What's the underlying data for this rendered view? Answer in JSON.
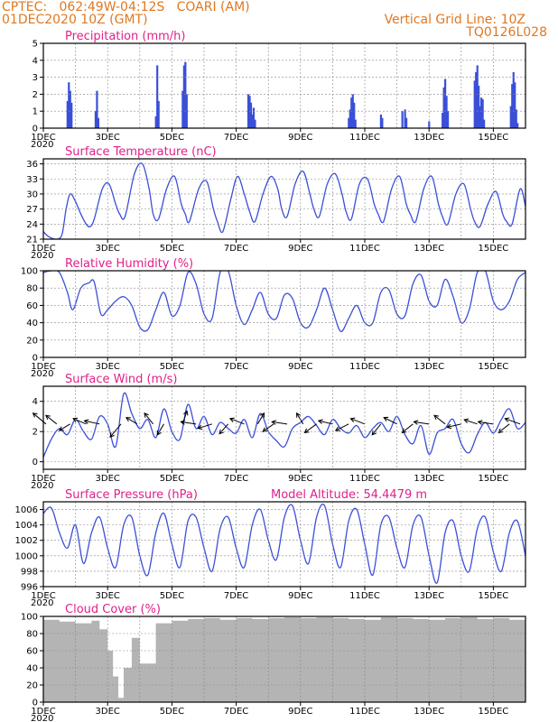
{
  "header": {
    "line1": "CPTEC:   062:49W-04:12S   COARI (AM)",
    "line2": "01DEC2020 10Z (GMT)",
    "right1": "Vertical Grid Line: 10Z",
    "right2": "TQ0126L028"
  },
  "xaxis": {
    "start_date": "01DEC2020 10Z",
    "end_date": "16DEC2020 10Z",
    "tick_labels": [
      "1DEC",
      "3DEC",
      "5DEC",
      "7DEC",
      "9DEC",
      "11DEC",
      "13DEC",
      "15DEC"
    ],
    "year_label": "2020"
  },
  "colors": {
    "series": "#3a4fd8",
    "title": "#e0208a",
    "header": "#e07820",
    "cloud": "#b4b4b4",
    "grid": "#888888"
  },
  "chart_data": [
    {
      "type": "bar",
      "title": "Precipitation (mm/h)",
      "ylim": [
        0,
        5
      ],
      "yticks": [
        0,
        1,
        2,
        3,
        4,
        5
      ],
      "x": [
        "02DEC 04Z",
        "02DEC 05Z",
        "02DEC 06Z",
        "02DEC 07Z",
        "03DEC 01Z",
        "03DEC 02Z",
        "03DEC 03Z",
        "04DEC 22Z",
        "04DEC 23Z",
        "05DEC 00Z",
        "05DEC 18Z",
        "05DEC 19Z",
        "05DEC 20Z",
        "05DEC 21Z",
        "07DEC 19Z",
        "07DEC 20Z",
        "07DEC 21Z",
        "07DEC 22Z",
        "07DEC 23Z",
        "08DEC 00Z",
        "10DEC 22Z",
        "10DEC 23Z",
        "11DEC 00Z",
        "11DEC 01Z",
        "11DEC 02Z",
        "11DEC 03Z",
        "11DEC 22Z",
        "11DEC 23Z",
        "12DEC 14Z",
        "12DEC 16Z",
        "12DEC 17Z",
        "13DEC 10Z",
        "13DEC 20Z",
        "13DEC 21Z",
        "13DEC 22Z",
        "13DEC 23Z",
        "14DEC 00Z",
        "14DEC 20Z",
        "14DEC 21Z",
        "14DEC 22Z",
        "14DEC 23Z",
        "15DEC 00Z",
        "15DEC 01Z",
        "15DEC 02Z",
        "15DEC 03Z",
        "15DEC 23Z",
        "16DEC 00Z",
        "16DEC 01Z",
        "16DEC 02Z",
        "16DEC 03Z",
        "16DEC 04Z"
      ],
      "values": [
        1.6,
        2.7,
        2.2,
        1.5,
        1.0,
        2.2,
        0.6,
        0.7,
        3.7,
        1.6,
        2.2,
        3.7,
        3.9,
        2.0,
        2.0,
        1.9,
        1.5,
        0.8,
        1.2,
        0.5,
        0.6,
        1.1,
        1.8,
        2.0,
        1.5,
        0.5,
        0.8,
        0.6,
        1.0,
        1.1,
        0.6,
        0.4,
        0.9,
        2.4,
        2.9,
        1.9,
        1.0,
        2.8,
        3.3,
        3.7,
        2.5,
        1.3,
        1.8,
        1.7,
        0.5,
        1.3,
        2.6,
        3.3,
        2.7,
        1.1,
        0.3
      ]
    },
    {
      "type": "line",
      "title": "Surface Temperature (nC)",
      "ylim": [
        21,
        37
      ],
      "yticks": [
        21,
        24,
        27,
        30,
        33,
        36
      ],
      "x": [
        "01DEC 10Z",
        "01DEC 14Z",
        "01DEC 20Z",
        "02DEC 00Z",
        "02DEC 03Z",
        "02DEC 06Z",
        "02DEC 10Z",
        "02DEC 14Z",
        "02DEC 18Z",
        "02DEC 21Z",
        "03DEC 00Z",
        "03DEC 06Z",
        "03DEC 11Z",
        "03DEC 16Z",
        "03DEC 19Z",
        "03DEC 23Z",
        "04DEC 06Z",
        "04DEC 12Z",
        "04DEC 17Z",
        "04DEC 20Z",
        "05DEC 00Z",
        "05DEC 06Z",
        "05DEC 12Z",
        "05DEC 17Z",
        "05DEC 20Z",
        "05DEC 23Z",
        "06DEC 06Z",
        "06DEC 12Z",
        "06DEC 17Z",
        "06DEC 20Z",
        "07DEC 00Z",
        "07DEC 06Z",
        "07DEC 11Z",
        "07DEC 16Z",
        "07DEC 20Z",
        "08DEC 00Z",
        "08DEC 06Z",
        "08DEC 12Z",
        "08DEC 17Z",
        "08DEC 20Z",
        "09DEC 00Z",
        "09DEC 06Z",
        "09DEC 12Z",
        "09DEC 17Z",
        "09DEC 20Z",
        "10DEC 00Z",
        "10DEC 06Z",
        "10DEC 12Z",
        "10DEC 17Z",
        "10DEC 20Z",
        "11DEC 00Z",
        "11DEC 06Z",
        "11DEC 12Z",
        "11DEC 17Z",
        "11DEC 20Z",
        "12DEC 00Z",
        "12DEC 06Z",
        "12DEC 12Z",
        "12DEC 17Z",
        "12DEC 20Z",
        "13DEC 00Z",
        "13DEC 06Z",
        "13DEC 12Z",
        "13DEC 17Z",
        "13DEC 20Z",
        "14DEC 00Z",
        "14DEC 06Z",
        "14DEC 12Z",
        "14DEC 17Z",
        "14DEC 20Z",
        "15DEC 00Z",
        "15DEC 06Z",
        "15DEC 12Z",
        "15DEC 17Z",
        "15DEC 20Z",
        "16DEC 00Z",
        "16DEC 06Z",
        "16DEC 10Z"
      ],
      "values": [
        22.5,
        21.5,
        21.0,
        22.0,
        27.0,
        30.0,
        28.5,
        26.0,
        24.0,
        23.5,
        25.0,
        31.0,
        32.0,
        28.0,
        26.0,
        25.5,
        34.0,
        36.0,
        31.0,
        26.0,
        25.0,
        31.0,
        33.5,
        28.0,
        26.0,
        24.5,
        31.0,
        32.5,
        27.0,
        24.5,
        22.5,
        29.0,
        33.5,
        30.0,
        26.5,
        24.5,
        30.0,
        33.5,
        31.0,
        27.0,
        25.5,
        32.0,
        34.5,
        30.0,
        27.0,
        25.5,
        32.0,
        34.0,
        30.0,
        26.5,
        25.0,
        32.0,
        33.0,
        28.0,
        26.0,
        24.5,
        31.0,
        33.5,
        28.0,
        26.0,
        24.5,
        31.0,
        33.5,
        28.0,
        25.5,
        24.0,
        30.0,
        32.0,
        27.0,
        24.5,
        23.5,
        28.0,
        30.5,
        26.0,
        24.5,
        24.0,
        31.0,
        27.5
      ]
    },
    {
      "type": "line",
      "title": "Relative Humidity (%)",
      "ylim": [
        0,
        100
      ],
      "yticks": [
        0,
        20,
        40,
        60,
        80,
        100
      ],
      "x": [
        "01DEC 10Z",
        "01DEC 16Z",
        "01DEC 22Z",
        "02DEC 04Z",
        "02DEC 08Z",
        "02DEC 14Z",
        "02DEC 20Z",
        "03DEC 00Z",
        "03DEC 05Z",
        "03DEC 10Z",
        "03DEC 16Z",
        "03DEC 22Z",
        "04DEC 04Z",
        "04DEC 10Z",
        "04DEC 16Z",
        "04DEC 22Z",
        "05DEC 04Z",
        "05DEC 10Z",
        "05DEC 16Z",
        "05DEC 22Z",
        "06DEC 04Z",
        "06DEC 10Z",
        "06DEC 16Z",
        "06DEC 22Z",
        "07DEC 04Z",
        "07DEC 10Z",
        "07DEC 16Z",
        "07DEC 22Z",
        "08DEC 04Z",
        "08DEC 10Z",
        "08DEC 16Z",
        "08DEC 22Z",
        "09DEC 04Z",
        "09DEC 10Z",
        "09DEC 16Z",
        "09DEC 22Z",
        "10DEC 04Z",
        "10DEC 10Z",
        "10DEC 16Z",
        "10DEC 22Z",
        "11DEC 04Z",
        "11DEC 10Z",
        "11DEC 16Z",
        "11DEC 22Z",
        "12DEC 04Z",
        "12DEC 10Z",
        "12DEC 16Z",
        "12DEC 22Z",
        "13DEC 04Z",
        "13DEC 10Z",
        "13DEC 16Z",
        "13DEC 22Z",
        "14DEC 04Z",
        "14DEC 10Z",
        "14DEC 16Z",
        "14DEC 22Z",
        "15DEC 04Z",
        "15DEC 10Z",
        "15DEC 16Z",
        "15DEC 22Z",
        "16DEC 04Z",
        "16DEC 10Z"
      ],
      "values": [
        98,
        100,
        98,
        75,
        55,
        80,
        86,
        87,
        50,
        55,
        65,
        70,
        60,
        35,
        32,
        55,
        75,
        48,
        60,
        98,
        85,
        50,
        45,
        98,
        100,
        60,
        38,
        55,
        75,
        50,
        45,
        72,
        68,
        40,
        35,
        55,
        80,
        55,
        30,
        45,
        60,
        40,
        40,
        75,
        78,
        50,
        48,
        85,
        95,
        65,
        60,
        90,
        70,
        40,
        55,
        98,
        100,
        65,
        55,
        65,
        90,
        98
      ]
    },
    {
      "type": "line",
      "title": "Surface Wind (m/s)",
      "ylim": [
        -0.5,
        5
      ],
      "yticks": [
        0,
        2,
        4
      ],
      "x": [
        "01DEC 10Z",
        "01DEC 16Z",
        "01DEC 22Z",
        "02DEC 04Z",
        "02DEC 10Z",
        "02DEC 16Z",
        "02DEC 22Z",
        "03DEC 04Z",
        "03DEC 10Z",
        "03DEC 16Z",
        "03DEC 22Z",
        "04DEC 04Z",
        "04DEC 10Z",
        "04DEC 16Z",
        "04DEC 22Z",
        "05DEC 04Z",
        "05DEC 10Z",
        "05DEC 16Z",
        "05DEC 22Z",
        "06DEC 04Z",
        "06DEC 10Z",
        "06DEC 16Z",
        "06DEC 22Z",
        "07DEC 04Z",
        "07DEC 10Z",
        "07DEC 16Z",
        "07DEC 22Z",
        "08DEC 04Z",
        "08DEC 10Z",
        "08DEC 16Z",
        "08DEC 22Z",
        "09DEC 04Z",
        "09DEC 10Z",
        "09DEC 16Z",
        "09DEC 22Z",
        "10DEC 04Z",
        "10DEC 10Z",
        "10DEC 16Z",
        "10DEC 22Z",
        "11DEC 04Z",
        "11DEC 10Z",
        "11DEC 16Z",
        "11DEC 22Z",
        "12DEC 04Z",
        "12DEC 10Z",
        "12DEC 16Z",
        "12DEC 22Z",
        "13DEC 04Z",
        "13DEC 10Z",
        "13DEC 16Z",
        "13DEC 22Z",
        "14DEC 04Z",
        "14DEC 10Z",
        "14DEC 16Z",
        "14DEC 22Z",
        "15DEC 04Z",
        "15DEC 10Z",
        "15DEC 16Z",
        "15DEC 22Z",
        "16DEC 04Z",
        "16DEC 10Z"
      ],
      "values": [
        0.3,
        1.5,
        2.2,
        1.8,
        2.8,
        2.0,
        1.5,
        3.0,
        2.5,
        1.0,
        4.5,
        3.2,
        2.2,
        2.8,
        1.6,
        3.5,
        2.0,
        1.5,
        3.8,
        2.2,
        3.0,
        1.8,
        2.6,
        2.2,
        1.9,
        2.8,
        1.6,
        3.2,
        2.0,
        1.4,
        1.0,
        2.2,
        2.6,
        3.0,
        2.4,
        1.8,
        2.8,
        2.2,
        1.9,
        2.4,
        1.6,
        2.2,
        2.6,
        2.0,
        3.0,
        1.8,
        1.2,
        2.4,
        0.5,
        1.9,
        2.2,
        2.8,
        1.2,
        0.6,
        1.8,
        2.6,
        1.9,
        2.8,
        3.5,
        2.2,
        2.6
      ],
      "arrows": [
        {
          "x": "01DEC 12Z",
          "u": -1.2,
          "v": 1.0
        },
        {
          "x": "01DEC 20Z",
          "u": -1.0,
          "v": 0.8
        },
        {
          "x": "02DEC 06Z",
          "u": -1.0,
          "v": -0.6
        },
        {
          "x": "02DEC 18Z",
          "u": -1.2,
          "v": 0.5
        },
        {
          "x": "03DEC 04Z",
          "u": -1.4,
          "v": 0.3
        },
        {
          "x": "03DEC 20Z",
          "u": -1.0,
          "v": -1.2
        },
        {
          "x": "04DEC 08Z",
          "u": -1.0,
          "v": 0.6
        },
        {
          "x": "04DEC 20Z",
          "u": -0.8,
          "v": 1.0
        },
        {
          "x": "05DEC 04Z",
          "u": -0.6,
          "v": -1.0
        },
        {
          "x": "05DEC 18Z",
          "u": 0.4,
          "v": 1.2
        },
        {
          "x": "06DEC 04Z",
          "u": -1.4,
          "v": 0.2
        },
        {
          "x": "06DEC 16Z",
          "u": -1.3,
          "v": -0.4
        },
        {
          "x": "07DEC 04Z",
          "u": -0.8,
          "v": -0.9
        },
        {
          "x": "07DEC 16Z",
          "u": -1.3,
          "v": 0.5
        },
        {
          "x": "08DEC 02Z",
          "u": 0.6,
          "v": 1.0
        },
        {
          "x": "08DEC 14Z",
          "u": -1.0,
          "v": -0.7
        },
        {
          "x": "09DEC 00Z",
          "u": -1.4,
          "v": 0.2
        },
        {
          "x": "09DEC 12Z",
          "u": -0.6,
          "v": 1.0
        },
        {
          "x": "09DEC 22Z",
          "u": -1.1,
          "v": -0.8
        },
        {
          "x": "10DEC 10Z",
          "u": -1.3,
          "v": 0.3
        },
        {
          "x": "10DEC 22Z",
          "u": -1.2,
          "v": -0.6
        },
        {
          "x": "11DEC 10Z",
          "u": -1.3,
          "v": 0.5
        },
        {
          "x": "11DEC 22Z",
          "u": -0.8,
          "v": -1.0
        },
        {
          "x": "12DEC 10Z",
          "u": -1.2,
          "v": 0.6
        },
        {
          "x": "12DEC 22Z",
          "u": -1.0,
          "v": -0.8
        },
        {
          "x": "13DEC 10Z",
          "u": -1.4,
          "v": 0.2
        },
        {
          "x": "13DEC 22Z",
          "u": -1.0,
          "v": 0.8
        },
        {
          "x": "14DEC 10Z",
          "u": -1.3,
          "v": -0.3
        },
        {
          "x": "14DEC 22Z",
          "u": -1.2,
          "v": 0.4
        },
        {
          "x": "15DEC 10Z",
          "u": -1.4,
          "v": 0.2
        },
        {
          "x": "15DEC 22Z",
          "u": -1.0,
          "v": -0.8
        },
        {
          "x": "16DEC 06Z",
          "u": -1.4,
          "v": 0.5
        }
      ]
    },
    {
      "type": "line",
      "title": "Surface Pressure (hPa)",
      "annotation": "Model Altitude: 54.4479 m",
      "ylim": [
        996,
        1007
      ],
      "yticks": [
        996,
        998,
        1000,
        1002,
        1004,
        1006
      ],
      "x": [
        "01DEC 10Z",
        "01DEC 16Z",
        "01DEC 22Z",
        "02DEC 04Z",
        "02DEC 10Z",
        "02DEC 16Z",
        "02DEC 22Z",
        "03DEC 04Z",
        "03DEC 10Z",
        "03DEC 16Z",
        "03DEC 22Z",
        "04DEC 04Z",
        "04DEC 10Z",
        "04DEC 16Z",
        "04DEC 22Z",
        "05DEC 04Z",
        "05DEC 10Z",
        "05DEC 16Z",
        "05DEC 22Z",
        "06DEC 04Z",
        "06DEC 10Z",
        "06DEC 16Z",
        "06DEC 22Z",
        "07DEC 04Z",
        "07DEC 10Z",
        "07DEC 16Z",
        "07DEC 22Z",
        "08DEC 04Z",
        "08DEC 10Z",
        "08DEC 16Z",
        "08DEC 22Z",
        "09DEC 04Z",
        "09DEC 10Z",
        "09DEC 16Z",
        "09DEC 22Z",
        "10DEC 04Z",
        "10DEC 10Z",
        "10DEC 16Z",
        "10DEC 22Z",
        "11DEC 04Z",
        "11DEC 10Z",
        "11DEC 16Z",
        "11DEC 22Z",
        "12DEC 04Z",
        "12DEC 10Z",
        "12DEC 16Z",
        "12DEC 22Z",
        "13DEC 04Z",
        "13DEC 10Z",
        "13DEC 16Z",
        "13DEC 22Z",
        "14DEC 04Z",
        "14DEC 10Z",
        "14DEC 16Z",
        "14DEC 22Z",
        "15DEC 04Z",
        "15DEC 10Z",
        "15DEC 16Z",
        "15DEC 22Z",
        "16DEC 04Z",
        "16DEC 10Z"
      ],
      "values": [
        1005.5,
        1006.2,
        1003.0,
        1001.0,
        1004.0,
        999.0,
        1003.0,
        1005.0,
        1001.0,
        998.5,
        1004.0,
        1005.0,
        1000.0,
        997.5,
        1003.0,
        1005.5,
        1001.5,
        998.5,
        1004.5,
        1005.0,
        1001.0,
        998.0,
        1003.5,
        1005.0,
        1001.0,
        998.5,
        1004.0,
        1006.0,
        1002.0,
        999.5,
        1005.0,
        1006.5,
        1002.0,
        999.0,
        1005.0,
        1006.5,
        1001.5,
        998.5,
        1004.5,
        1006.0,
        1001.5,
        997.5,
        1004.0,
        1005.0,
        1001.0,
        998.5,
        1004.0,
        1005.0,
        1000.0,
        996.5,
        1003.0,
        1004.5,
        1000.0,
        998.0,
        1003.5,
        1005.0,
        1000.5,
        998.0,
        1003.0,
        1004.5,
        1000.0
      ]
    },
    {
      "type": "area",
      "title": "Cloud Cover (%)",
      "ylim": [
        0,
        100
      ],
      "yticks": [
        0,
        20,
        40,
        60,
        80,
        100
      ],
      "x": [
        "01DEC 10Z",
        "01DEC 22Z",
        "02DEC 10Z",
        "02DEC 22Z",
        "03DEC 04Z",
        "03DEC 10Z",
        "03DEC 14Z",
        "03DEC 18Z",
        "03DEC 22Z",
        "04DEC 04Z",
        "04DEC 10Z",
        "04DEC 22Z",
        "05DEC 10Z",
        "05DEC 22Z",
        "06DEC 10Z",
        "06DEC 22Z",
        "07DEC 10Z",
        "07DEC 22Z",
        "08DEC 10Z",
        "08DEC 22Z",
        "09DEC 10Z",
        "09DEC 22Z",
        "10DEC 10Z",
        "10DEC 22Z",
        "11DEC 10Z",
        "11DEC 22Z",
        "12DEC 10Z",
        "12DEC 22Z",
        "13DEC 10Z",
        "13DEC 22Z",
        "14DEC 10Z",
        "14DEC 22Z",
        "15DEC 10Z",
        "15DEC 22Z",
        "16DEC 10Z"
      ],
      "values": [
        96,
        94,
        92,
        95,
        85,
        60,
        30,
        5,
        40,
        75,
        45,
        92,
        95,
        97,
        98,
        96,
        98,
        97,
        98,
        99,
        98,
        99,
        98,
        97,
        96,
        99,
        98,
        97,
        96,
        98,
        99,
        97,
        98,
        96,
        99
      ]
    }
  ]
}
